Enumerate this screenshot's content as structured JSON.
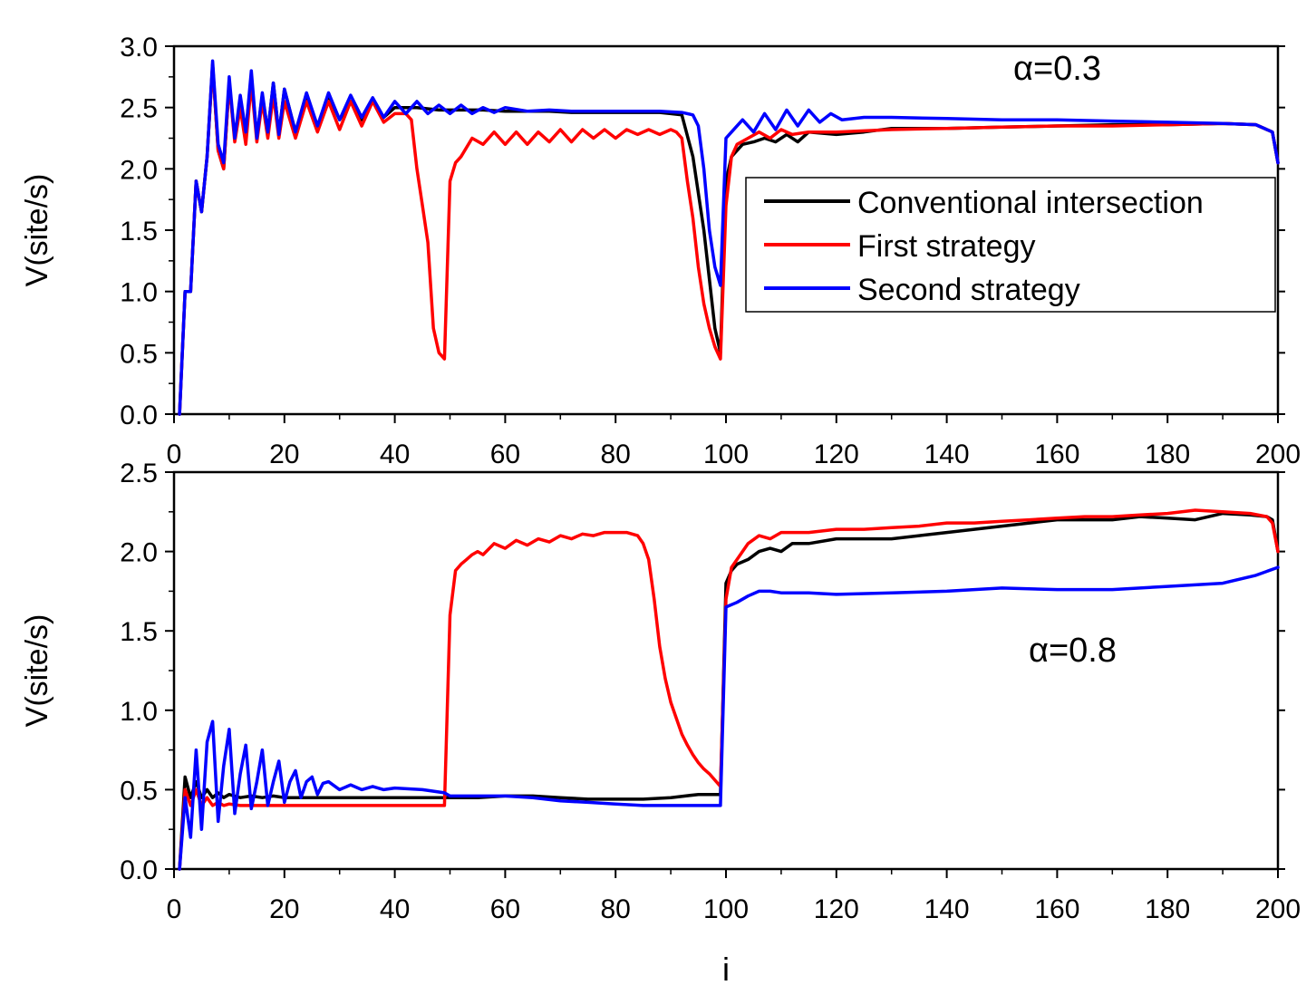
{
  "chart_data": [
    {
      "type": "line",
      "annotation": "α=0.3",
      "ylabel": "V(site/s)",
      "xlabel": "",
      "xlim": [
        0,
        200
      ],
      "ylim": [
        0,
        3.0
      ],
      "xticks": [
        "0",
        "20",
        "40",
        "60",
        "80",
        "100",
        "120",
        "140",
        "160",
        "180",
        "200"
      ],
      "yticks": [
        "0.0",
        "0.5",
        "1.0",
        "1.5",
        "2.0",
        "2.5",
        "3.0"
      ],
      "legend": {
        "placement": "right",
        "entries": [
          "Conventional intersection",
          "First strategy",
          "Second strategy"
        ]
      },
      "series": [
        {
          "name": "Conventional intersection",
          "color": "#000000",
          "x": [
            1,
            2,
            3,
            4,
            5,
            6,
            7,
            8,
            9,
            10,
            11,
            12,
            13,
            14,
            15,
            16,
            17,
            18,
            19,
            20,
            22,
            24,
            26,
            28,
            30,
            32,
            34,
            36,
            38,
            40,
            44,
            48,
            52,
            56,
            60,
            64,
            68,
            72,
            76,
            80,
            84,
            88,
            90,
            92,
            94,
            96,
            98,
            99,
            100,
            101,
            103,
            105,
            107,
            109,
            111,
            113,
            115,
            120,
            125,
            130,
            140,
            150,
            160,
            170,
            180,
            190,
            196,
            199,
            200
          ],
          "y": [
            0.0,
            1.0,
            1.0,
            1.9,
            1.65,
            2.1,
            2.85,
            2.15,
            2.0,
            2.7,
            2.25,
            2.55,
            2.3,
            2.75,
            2.25,
            2.6,
            2.3,
            2.7,
            2.28,
            2.65,
            2.3,
            2.6,
            2.35,
            2.6,
            2.4,
            2.55,
            2.4,
            2.55,
            2.42,
            2.5,
            2.5,
            2.48,
            2.48,
            2.48,
            2.47,
            2.47,
            2.47,
            2.46,
            2.46,
            2.46,
            2.46,
            2.46,
            2.45,
            2.44,
            2.1,
            1.5,
            0.7,
            0.5,
            1.9,
            2.1,
            2.2,
            2.22,
            2.25,
            2.22,
            2.28,
            2.22,
            2.3,
            2.28,
            2.3,
            2.33,
            2.33,
            2.34,
            2.35,
            2.36,
            2.36,
            2.37,
            2.36,
            2.3,
            2.05
          ]
        },
        {
          "name": "First strategy",
          "color": "#ff0000",
          "x": [
            1,
            2,
            3,
            4,
            5,
            6,
            7,
            8,
            9,
            10,
            11,
            12,
            13,
            14,
            15,
            16,
            17,
            18,
            19,
            20,
            22,
            24,
            26,
            28,
            30,
            32,
            34,
            36,
            38,
            40,
            42,
            43,
            44,
            45,
            46,
            47,
            48,
            49,
            50,
            51,
            52,
            54,
            56,
            58,
            60,
            62,
            64,
            66,
            68,
            70,
            72,
            74,
            76,
            78,
            80,
            82,
            84,
            86,
            88,
            90,
            91,
            92,
            93,
            94,
            95,
            96,
            97,
            98,
            99,
            100,
            101,
            102,
            104,
            106,
            108,
            110,
            112,
            115,
            120,
            130,
            140,
            150,
            160,
            170,
            180,
            190,
            196,
            199,
            200
          ],
          "y": [
            0.0,
            1.0,
            1.0,
            1.9,
            1.65,
            2.1,
            2.85,
            2.15,
            2.0,
            2.7,
            2.22,
            2.5,
            2.2,
            2.7,
            2.22,
            2.55,
            2.25,
            2.6,
            2.25,
            2.55,
            2.25,
            2.55,
            2.3,
            2.55,
            2.32,
            2.55,
            2.35,
            2.55,
            2.38,
            2.45,
            2.45,
            2.4,
            2.0,
            1.7,
            1.4,
            0.7,
            0.5,
            0.45,
            1.9,
            2.05,
            2.1,
            2.25,
            2.2,
            2.3,
            2.2,
            2.3,
            2.2,
            2.3,
            2.22,
            2.32,
            2.22,
            2.32,
            2.25,
            2.32,
            2.25,
            2.32,
            2.28,
            2.32,
            2.28,
            2.32,
            2.3,
            2.25,
            1.9,
            1.6,
            1.2,
            0.9,
            0.7,
            0.55,
            0.45,
            1.7,
            2.1,
            2.2,
            2.25,
            2.3,
            2.25,
            2.32,
            2.28,
            2.3,
            2.3,
            2.32,
            2.33,
            2.34,
            2.35,
            2.35,
            2.36,
            2.37,
            2.36,
            2.3,
            2.05
          ]
        },
        {
          "name": "Second strategy",
          "color": "#0000ff",
          "x": [
            1,
            2,
            3,
            4,
            5,
            6,
            7,
            8,
            9,
            10,
            11,
            12,
            13,
            14,
            15,
            16,
            17,
            18,
            19,
            20,
            22,
            24,
            26,
            28,
            30,
            32,
            34,
            36,
            38,
            40,
            42,
            44,
            46,
            48,
            50,
            52,
            54,
            56,
            58,
            60,
            64,
            68,
            72,
            76,
            80,
            84,
            88,
            92,
            94,
            95,
            96,
            97,
            98,
            99,
            100,
            101,
            103,
            105,
            107,
            109,
            111,
            113,
            115,
            117,
            119,
            121,
            125,
            130,
            140,
            150,
            160,
            170,
            180,
            190,
            196,
            199,
            200
          ],
          "y": [
            0.0,
            1.0,
            1.0,
            1.9,
            1.65,
            2.1,
            2.88,
            2.2,
            2.05,
            2.75,
            2.25,
            2.6,
            2.3,
            2.8,
            2.25,
            2.62,
            2.3,
            2.7,
            2.28,
            2.65,
            2.3,
            2.62,
            2.35,
            2.62,
            2.4,
            2.6,
            2.42,
            2.58,
            2.42,
            2.55,
            2.45,
            2.55,
            2.45,
            2.52,
            2.45,
            2.52,
            2.45,
            2.5,
            2.46,
            2.5,
            2.47,
            2.48,
            2.47,
            2.47,
            2.47,
            2.47,
            2.47,
            2.46,
            2.44,
            2.35,
            2.0,
            1.5,
            1.2,
            1.05,
            2.25,
            2.3,
            2.4,
            2.3,
            2.45,
            2.32,
            2.48,
            2.35,
            2.48,
            2.38,
            2.45,
            2.4,
            2.42,
            2.42,
            2.41,
            2.4,
            2.4,
            2.39,
            2.38,
            2.37,
            2.36,
            2.3,
            2.05
          ]
        }
      ]
    },
    {
      "type": "line",
      "annotation": "α=0.8",
      "ylabel": "V(site/s)",
      "xlabel": "i",
      "xlim": [
        0,
        200
      ],
      "ylim": [
        0,
        2.5
      ],
      "xticks": [
        "0",
        "20",
        "40",
        "60",
        "80",
        "100",
        "120",
        "140",
        "160",
        "180",
        "200"
      ],
      "yticks": [
        "0.0",
        "0.5",
        "1.0",
        "1.5",
        "2.0",
        "2.5"
      ],
      "series": [
        {
          "name": "Conventional intersection",
          "color": "#000000",
          "x": [
            1,
            2,
            3,
            4,
            5,
            6,
            7,
            8,
            9,
            10,
            12,
            14,
            16,
            18,
            20,
            25,
            30,
            35,
            40,
            45,
            49,
            50,
            55,
            60,
            65,
            70,
            75,
            80,
            85,
            90,
            95,
            99,
            100,
            101,
            102,
            104,
            106,
            108,
            110,
            112,
            115,
            120,
            125,
            130,
            135,
            140,
            145,
            150,
            155,
            160,
            165,
            170,
            175,
            180,
            185,
            190,
            195,
            198,
            199,
            200
          ],
          "y": [
            0.0,
            0.58,
            0.45,
            0.55,
            0.45,
            0.5,
            0.45,
            0.48,
            0.45,
            0.47,
            0.45,
            0.46,
            0.45,
            0.46,
            0.45,
            0.45,
            0.45,
            0.45,
            0.45,
            0.45,
            0.45,
            0.45,
            0.45,
            0.46,
            0.46,
            0.45,
            0.44,
            0.44,
            0.44,
            0.45,
            0.47,
            0.47,
            1.8,
            1.88,
            1.92,
            1.95,
            2.0,
            2.02,
            2.0,
            2.05,
            2.05,
            2.08,
            2.08,
            2.08,
            2.1,
            2.12,
            2.14,
            2.16,
            2.18,
            2.2,
            2.2,
            2.2,
            2.22,
            2.21,
            2.2,
            2.24,
            2.23,
            2.22,
            2.2,
            2.0
          ]
        },
        {
          "name": "First strategy",
          "color": "#ff0000",
          "x": [
            1,
            2,
            3,
            4,
            5,
            6,
            7,
            8,
            9,
            10,
            12,
            14,
            16,
            18,
            20,
            25,
            30,
            35,
            40,
            45,
            49,
            50,
            51,
            52,
            53,
            54,
            55,
            56,
            58,
            60,
            62,
            64,
            66,
            68,
            70,
            72,
            74,
            76,
            78,
            80,
            82,
            84,
            85,
            86,
            87,
            88,
            89,
            90,
            91,
            92,
            93,
            94,
            95,
            96,
            97,
            98,
            99,
            100,
            101,
            102,
            104,
            106,
            108,
            110,
            115,
            120,
            125,
            130,
            135,
            140,
            145,
            150,
            155,
            160,
            165,
            170,
            175,
            180,
            185,
            190,
            195,
            198,
            199,
            200
          ],
          "y": [
            0.0,
            0.5,
            0.4,
            0.5,
            0.4,
            0.45,
            0.4,
            0.42,
            0.4,
            0.41,
            0.4,
            0.4,
            0.4,
            0.4,
            0.4,
            0.4,
            0.4,
            0.4,
            0.4,
            0.4,
            0.4,
            1.6,
            1.88,
            1.92,
            1.95,
            1.98,
            2.0,
            1.98,
            2.05,
            2.02,
            2.07,
            2.04,
            2.08,
            2.06,
            2.1,
            2.08,
            2.11,
            2.1,
            2.12,
            2.12,
            2.12,
            2.1,
            2.05,
            1.95,
            1.7,
            1.4,
            1.2,
            1.05,
            0.95,
            0.85,
            0.78,
            0.72,
            0.67,
            0.63,
            0.6,
            0.56,
            0.52,
            1.7,
            1.9,
            1.95,
            2.05,
            2.1,
            2.08,
            2.12,
            2.12,
            2.14,
            2.14,
            2.15,
            2.16,
            2.18,
            2.18,
            2.19,
            2.2,
            2.21,
            2.22,
            2.22,
            2.23,
            2.24,
            2.26,
            2.25,
            2.24,
            2.22,
            2.18,
            2.0
          ]
        },
        {
          "name": "Second strategy",
          "color": "#0000ff",
          "x": [
            1,
            2,
            3,
            4,
            5,
            6,
            7,
            8,
            9,
            10,
            11,
            12,
            13,
            14,
            15,
            16,
            17,
            18,
            19,
            20,
            21,
            22,
            23,
            24,
            25,
            26,
            27,
            28,
            30,
            32,
            34,
            36,
            38,
            40,
            45,
            49,
            50,
            55,
            60,
            65,
            70,
            75,
            80,
            85,
            90,
            95,
            99,
            100,
            102,
            104,
            106,
            108,
            110,
            115,
            120,
            130,
            140,
            150,
            160,
            170,
            180,
            190,
            196,
            200
          ],
          "y": [
            0.0,
            0.45,
            0.2,
            0.75,
            0.25,
            0.8,
            0.93,
            0.3,
            0.65,
            0.88,
            0.35,
            0.6,
            0.78,
            0.38,
            0.55,
            0.75,
            0.4,
            0.55,
            0.68,
            0.42,
            0.55,
            0.62,
            0.45,
            0.55,
            0.58,
            0.47,
            0.54,
            0.55,
            0.5,
            0.53,
            0.5,
            0.52,
            0.5,
            0.51,
            0.5,
            0.48,
            0.46,
            0.46,
            0.46,
            0.45,
            0.43,
            0.42,
            0.41,
            0.4,
            0.4,
            0.4,
            0.4,
            1.65,
            1.68,
            1.72,
            1.75,
            1.75,
            1.74,
            1.74,
            1.73,
            1.74,
            1.75,
            1.77,
            1.76,
            1.76,
            1.78,
            1.8,
            1.85,
            1.9
          ]
        }
      ]
    }
  ]
}
